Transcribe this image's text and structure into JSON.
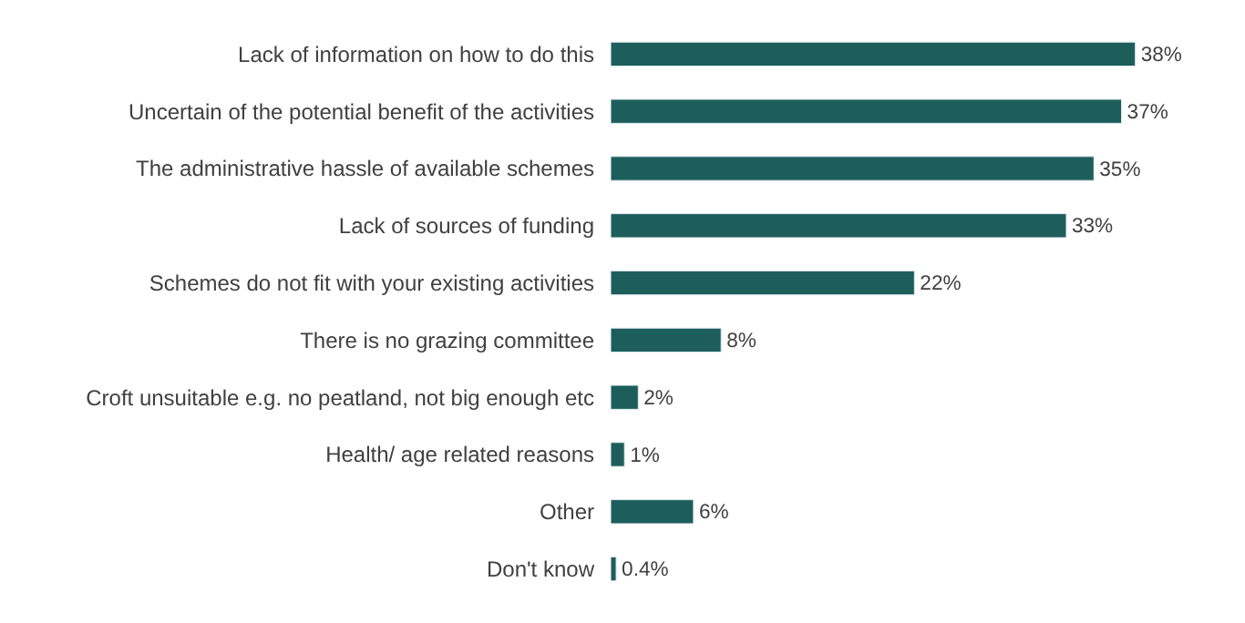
{
  "chart_data": {
    "type": "bar",
    "orientation": "horizontal",
    "categories": [
      "Lack of information on how to do this",
      "Uncertain of the potential benefit of the activities",
      "The administrative hassle of available schemes",
      "Lack of sources of funding",
      "Schemes do not fit with your existing activities",
      "There is no grazing committee",
      "Croft unsuitable e.g. no peatland, not big enough etc",
      "Health/ age related reasons",
      "Other",
      "Don't know"
    ],
    "values": [
      38,
      37,
      35,
      33,
      22,
      8,
      2,
      1,
      6,
      0.4
    ],
    "value_labels": [
      "38%",
      "37%",
      "35%",
      "33%",
      "22%",
      "8%",
      "2%",
      "1%",
      "6%",
      "0.4%"
    ],
    "color": "#1d5e5b"
  }
}
